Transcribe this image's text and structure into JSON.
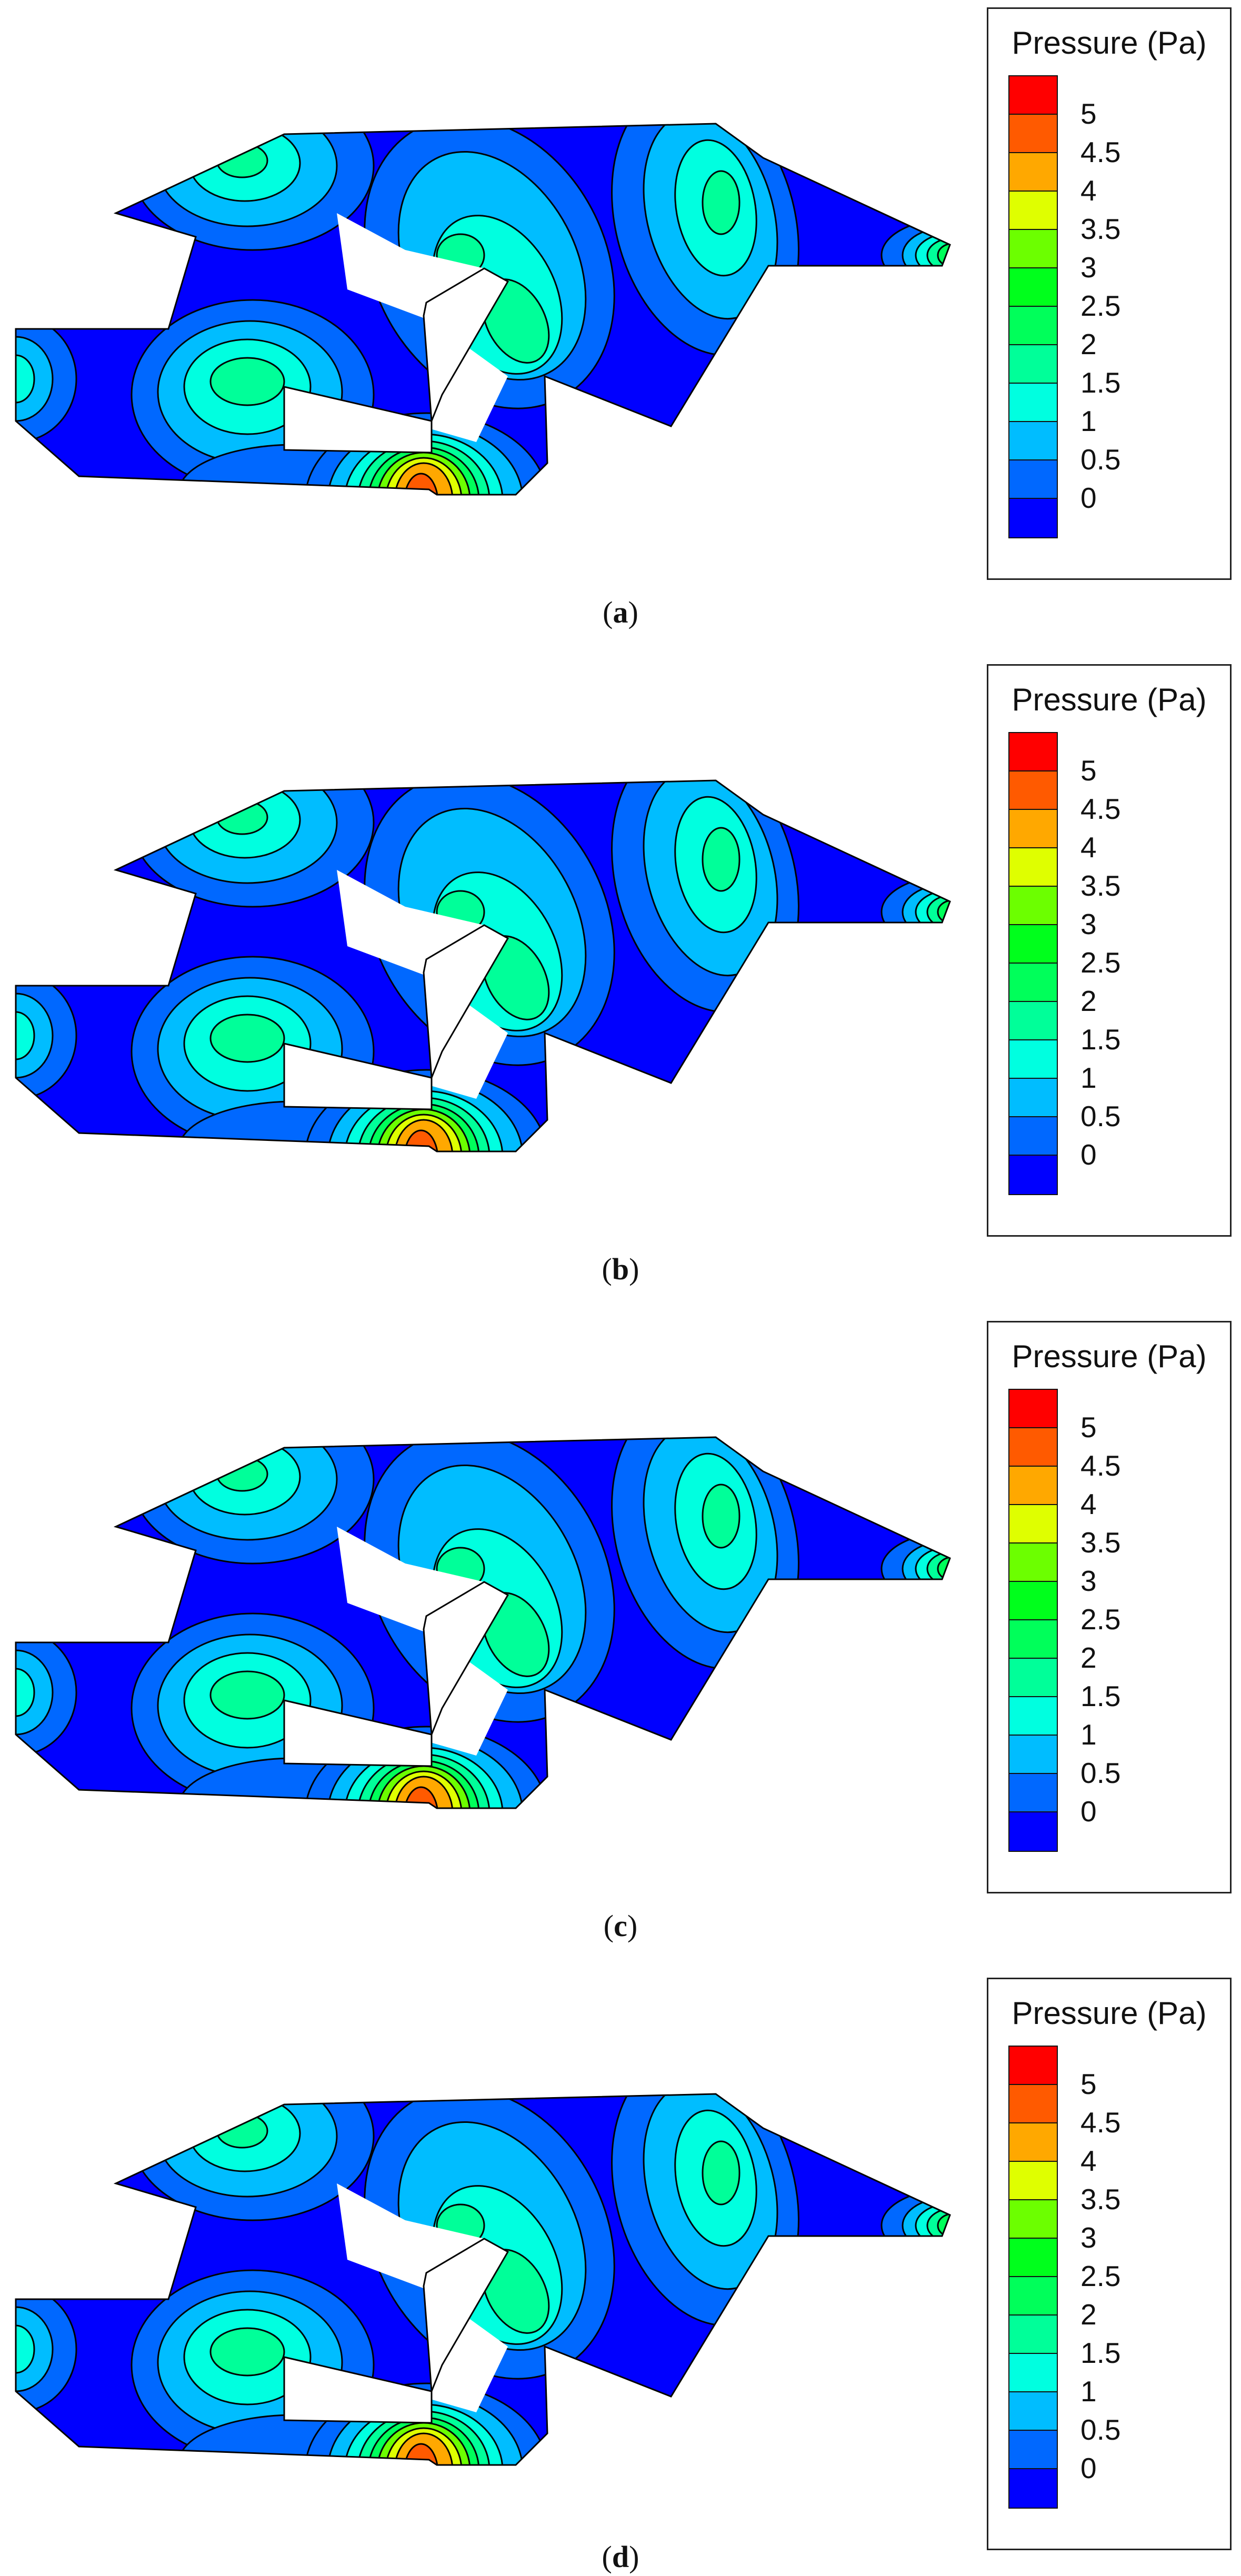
{
  "legend": {
    "title": "Pressure (Pa)",
    "tick_labels": [
      "5",
      "4.5",
      "4",
      "3.5",
      "3",
      "2.5",
      "2",
      "1.5",
      "1",
      "0.5",
      "0"
    ],
    "band_colors": [
      "#ff0000",
      "#ff5a00",
      "#ffa800",
      "#dfff00",
      "#6cff00",
      "#00ff1c",
      "#00ff5a",
      "#00ff99",
      "#00ffe0",
      "#00bdff",
      "#0068ff",
      "#0000ff"
    ]
  },
  "palette": {
    "base": "#0000ff",
    "c1": "#0068ff",
    "c2": "#00bdff",
    "c3": "#00ffe0",
    "c4": "#00ff99",
    "c5": "#00ff5a",
    "c6": "#6cff00",
    "c7": "#dfff00",
    "c8": "#ffa800",
    "c9": "#ff5a00",
    "c10": "#ff0000"
  },
  "panels": [
    {
      "label": "a"
    },
    {
      "label": "b"
    },
    {
      "label": "c"
    },
    {
      "label": "d"
    }
  ]
}
